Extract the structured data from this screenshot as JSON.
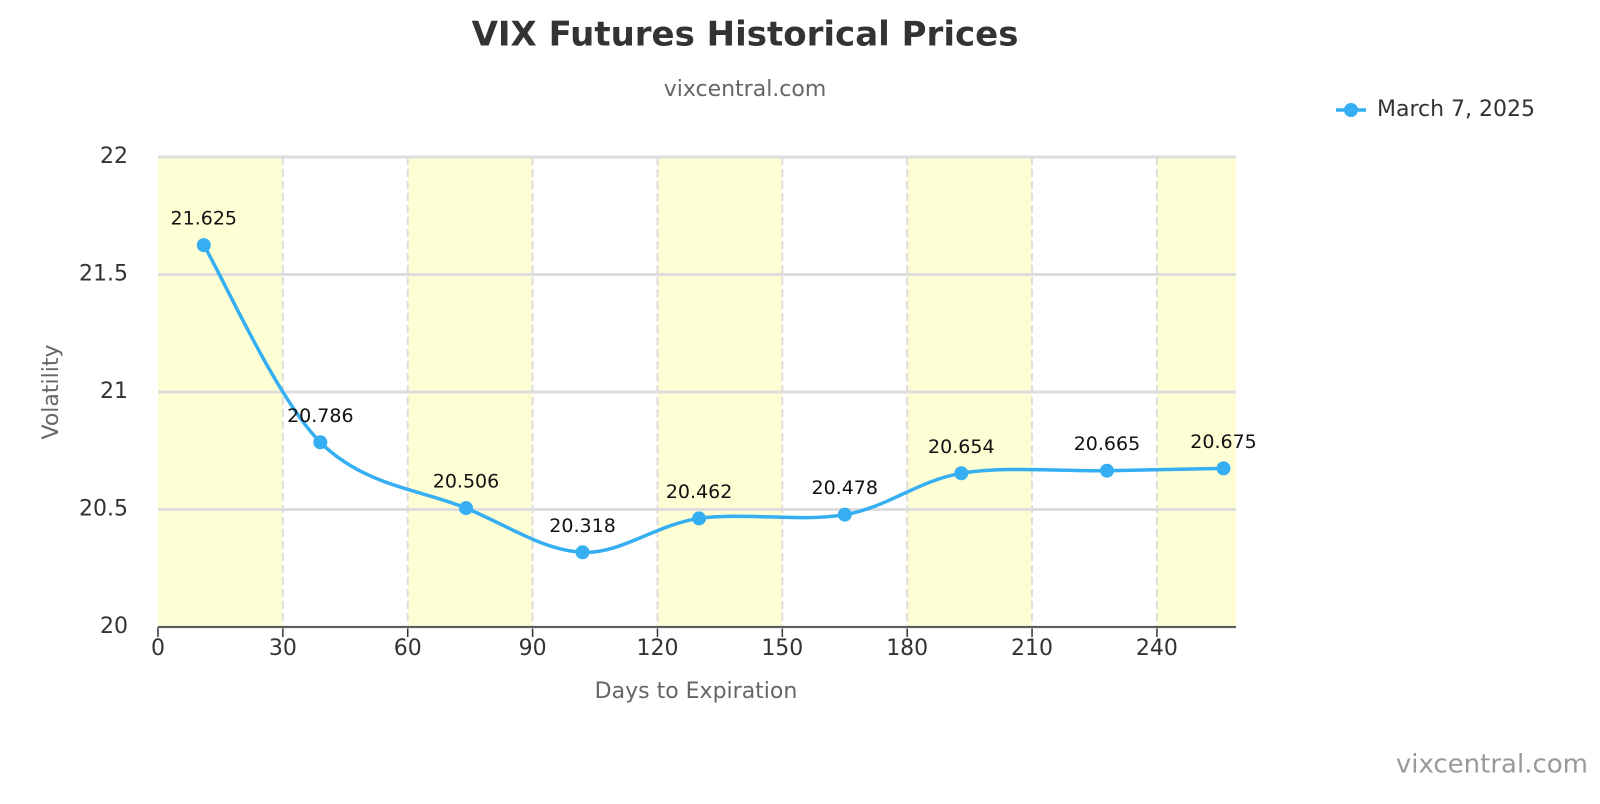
{
  "chart_data": {
    "type": "line",
    "title": "VIX Futures Historical Prices",
    "subtitle": "vixcentral.com",
    "watermark": "vixcentral.com",
    "x_label": "Days to Expiration",
    "y_label": "Volatility",
    "x": [
      11,
      39,
      74,
      102,
      130,
      165,
      193,
      228,
      256
    ],
    "series": [
      {
        "name": "March 7, 2025",
        "color": "#35aef2",
        "values": [
          21.625,
          20.786,
          20.506,
          20.318,
          20.462,
          20.478,
          20.654,
          20.665,
          20.675
        ]
      }
    ],
    "xlim": [
      0,
      259
    ],
    "xticks": [
      0,
      30,
      60,
      90,
      120,
      150,
      180,
      210,
      240
    ],
    "ylim": [
      20,
      22
    ],
    "yticks": [
      20,
      20.5,
      21,
      21.5,
      22
    ],
    "grid": true,
    "band_color": "#fefed5",
    "legend": "top-right"
  }
}
